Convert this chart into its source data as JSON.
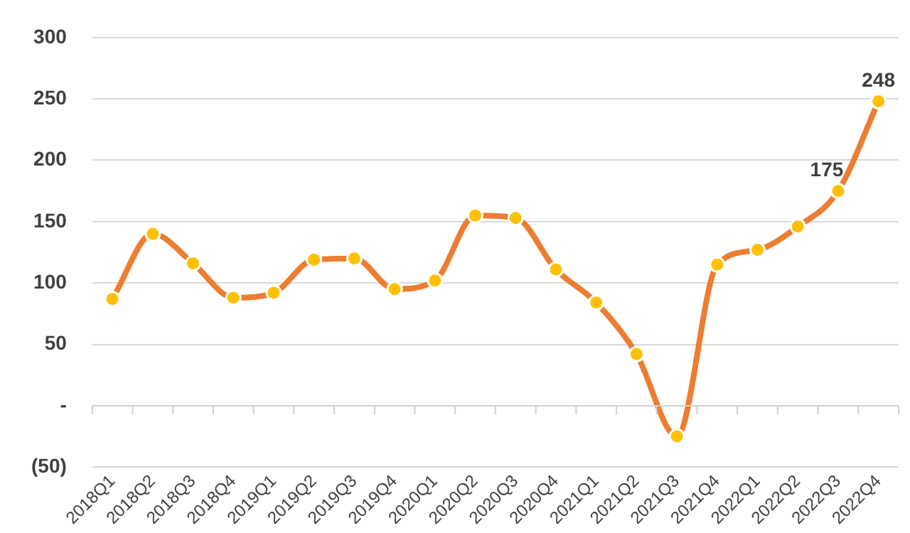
{
  "chart_data": {
    "type": "line",
    "categories": [
      "2018Q1",
      "2018Q2",
      "2018Q3",
      "2018Q4",
      "2019Q1",
      "2019Q2",
      "2019Q3",
      "2019Q4",
      "2020Q1",
      "2020Q2",
      "2020Q3",
      "2020Q4",
      "2021Q1",
      "2021Q2",
      "2021Q3",
      "2021Q4",
      "2022Q1",
      "2022Q2",
      "2022Q3",
      "2022Q4"
    ],
    "series": [
      {
        "color": "#ed7d31",
        "values": [
          87,
          140,
          116,
          88,
          92,
          119,
          120,
          95,
          102,
          155,
          153,
          111,
          84,
          42,
          -25,
          115,
          127,
          146,
          175,
          248
        ],
        "value_labels": [
          null,
          null,
          null,
          null,
          null,
          null,
          null,
          null,
          null,
          null,
          null,
          null,
          null,
          null,
          null,
          null,
          null,
          null,
          "175",
          "248"
        ]
      }
    ],
    "ylim": [
      -50,
      300
    ],
    "yticks": [
      {
        "value": -50,
        "label": "(50)"
      },
      {
        "value": 0,
        "label": "-"
      },
      50,
      100,
      150,
      200,
      250,
      300
    ],
    "grid": "y",
    "marker": "circle",
    "legend": false
  }
}
